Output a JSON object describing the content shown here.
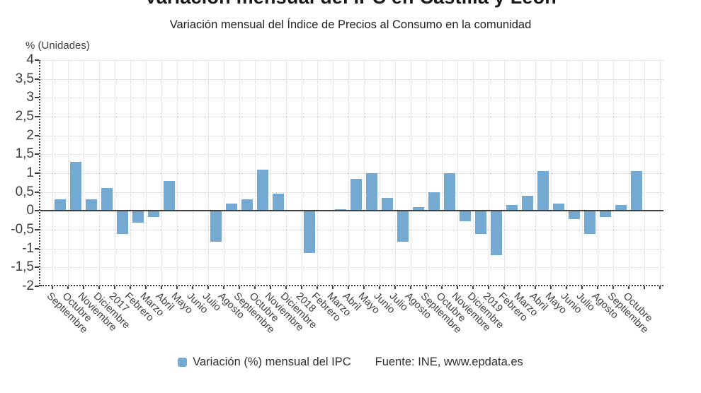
{
  "page": {
    "title": "Variación mensual del IPC en Castilla y León",
    "subtitle": "Variación mensual del Índice de Precios al Consumo en la comunidad"
  },
  "chart_data": {
    "type": "bar",
    "title": "Variación mensual del IPC en Castilla y León",
    "subtitle": "Variación mensual del Índice de Precios al Consumo en la comunidad",
    "ylabel": "% (Unidades)",
    "xlabel": "",
    "ylim": [
      -2,
      4
    ],
    "ytick_step": 0.5,
    "ytick_labels": [
      "4",
      "3,5",
      "3",
      "2,5",
      "2",
      "1,5",
      "1",
      "0,5",
      "0",
      "-0,5",
      "-1",
      "-1,5",
      "-2"
    ],
    "grid": true,
    "grid_style": "dotted",
    "legend_position": "bottom",
    "decimal_separator": ",",
    "categories": [
      "Septiembre",
      "Octubre",
      "Noviembre",
      "Diciembre",
      "2017",
      "Febrero",
      "Marzo",
      "Abril",
      "Mayo",
      "Junio",
      "Julio",
      "Agosto",
      "Septiembre",
      "Octubre",
      "Noviembre",
      "Diciembre",
      "2018",
      "Febrero",
      "Marzo",
      "Abril",
      "Mayo",
      "Junio",
      "Julio",
      "Agosto",
      "Septiembre",
      "Octubre",
      "Noviembre",
      "Diciembre",
      "2019",
      "Febrero",
      "Marzo",
      "Abril",
      "Mayo",
      "Junio",
      "Julio",
      "Agosto",
      "Septiembre",
      "Octubre"
    ],
    "values": [
      0.3,
      1.3,
      0.3,
      0.6,
      -0.6,
      -0.3,
      -0.15,
      0.8,
      0.02,
      0.0,
      -0.8,
      0.2,
      0.3,
      1.1,
      0.45,
      0.0,
      -1.1,
      0.0,
      0.05,
      0.85,
      1.0,
      0.35,
      -0.8,
      0.1,
      0.5,
      1.0,
      -0.25,
      -0.6,
      -1.15,
      0.15,
      0.4,
      1.05,
      0.2,
      -0.2,
      -0.6,
      -0.15,
      0.15,
      1.05
    ],
    "empty_trailing_slots": 2,
    "series_name": "Variación (%) mensual del IPC",
    "legend_label": "Variación (%) mensual del IPC",
    "source": "Fuente: INE, www.epdata.es",
    "colors": {
      "bar": "#74AAD2",
      "grid": "#cbcbcb",
      "axis": "#3c3c3c",
      "zero_line": "#404040",
      "text": "#404040",
      "title": "#191919"
    }
  }
}
